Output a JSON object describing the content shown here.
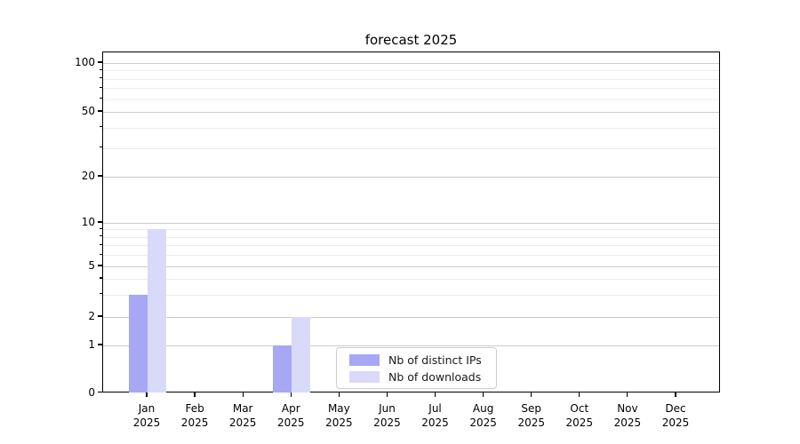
{
  "chart_data": {
    "type": "bar",
    "title": "forecast 2025",
    "categories": [
      "Jan",
      "Feb",
      "Mar",
      "Apr",
      "May",
      "Jun",
      "Jul",
      "Aug",
      "Sep",
      "Oct",
      "Nov",
      "Dec"
    ],
    "year_label": "2025",
    "series": [
      {
        "name": "Nb of distinct IPs",
        "color": "#a7a7f5",
        "values": [
          3,
          0,
          0,
          1,
          0,
          0,
          0,
          0,
          0,
          0,
          0,
          0
        ]
      },
      {
        "name": "Nb of downloads",
        "color": "#d9d9f9",
        "values": [
          9,
          0,
          0,
          2,
          0,
          0,
          0,
          0,
          0,
          0,
          0,
          0
        ]
      }
    ],
    "yticks": [
      0,
      1,
      2,
      5,
      10,
      20,
      50,
      100
    ],
    "minor_grid_values": [
      3,
      4,
      6,
      7,
      8,
      9,
      30,
      40,
      60,
      70,
      80,
      90
    ],
    "yscale": "symlog",
    "ylim": [
      0,
      116
    ],
    "grid": "horizontal major+minor",
    "legend_position": "lower center",
    "colors": {
      "major_gridline": "#cbcbcb",
      "minor_gridline": "#ececec",
      "axis": "#000000",
      "background": "#ffffff"
    }
  }
}
